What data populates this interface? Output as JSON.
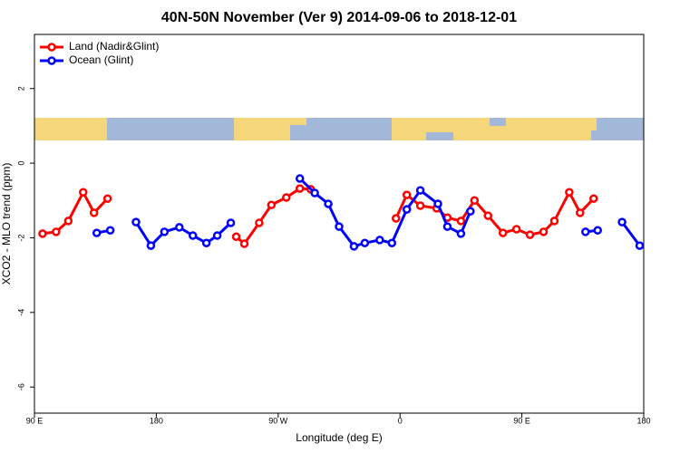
{
  "chart_data": {
    "type": "line",
    "title": "40N-50N November (Ver 9)   2014-09-06 to 2018-12-01",
    "x_label": "Longitude (deg E)",
    "y_label": "XCO2 - MLO trend (ppm)",
    "xlim": [
      90,
      540
    ],
    "ylim": [
      -6.7,
      3.45
    ],
    "xticks": [
      {
        "value": 90,
        "label": "90 E"
      },
      180,
      {
        "value": 270,
        "label": "90 W"
      },
      {
        "value": 360,
        "label": "0"
      },
      {
        "value": 450,
        "label": "90 E"
      },
      {
        "value": 540,
        "label": "180"
      }
    ],
    "yticks": [
      2,
      0,
      -2,
      -4,
      -6
    ],
    "legend": "topleft",
    "series": [
      {
        "name": "Land (Nadir&Glint)",
        "color": "#ff0000",
        "x": [
          96,
          106,
          115,
          126,
          134,
          144,
          null,
          239,
          245,
          256,
          265,
          276,
          286,
          294,
          null,
          357,
          365,
          375,
          387,
          395,
          405,
          415,
          425,
          436,
          446,
          456,
          466,
          474,
          485,
          493,
          503
        ],
        "values": [
          -1.89,
          -1.84,
          -1.55,
          -0.78,
          -1.33,
          -0.95,
          null,
          -1.97,
          -2.16,
          -1.6,
          -1.12,
          -0.92,
          -0.68,
          -0.7,
          null,
          -1.48,
          -0.85,
          -1.14,
          -1.21,
          -1.46,
          -1.55,
          -1.0,
          -1.41,
          -1.87,
          -1.77,
          -1.92,
          -1.84,
          -1.55,
          -0.78,
          -1.33,
          -0.95
        ]
      },
      {
        "name": "Ocean (Glint)",
        "color": "#0000ff",
        "x": [
          136,
          146,
          null,
          165,
          176,
          186,
          197,
          207,
          217,
          225,
          235,
          null,
          286,
          297,
          307,
          315,
          326,
          334,
          345,
          354,
          365,
          375,
          388,
          395,
          405,
          412,
          null,
          497,
          506,
          null,
          524,
          537
        ],
        "values": [
          -1.87,
          -1.8,
          null,
          -1.58,
          -2.21,
          -1.84,
          -1.72,
          -1.94,
          -2.14,
          -1.94,
          -1.6,
          null,
          -0.41,
          -0.8,
          -1.09,
          -1.7,
          -2.23,
          -2.14,
          -2.06,
          -2.14,
          -1.24,
          -0.73,
          -1.09,
          -1.7,
          -1.89,
          -1.29,
          null,
          -1.84,
          -1.8,
          null,
          -1.58,
          -2.21
        ]
      }
    ]
  }
}
